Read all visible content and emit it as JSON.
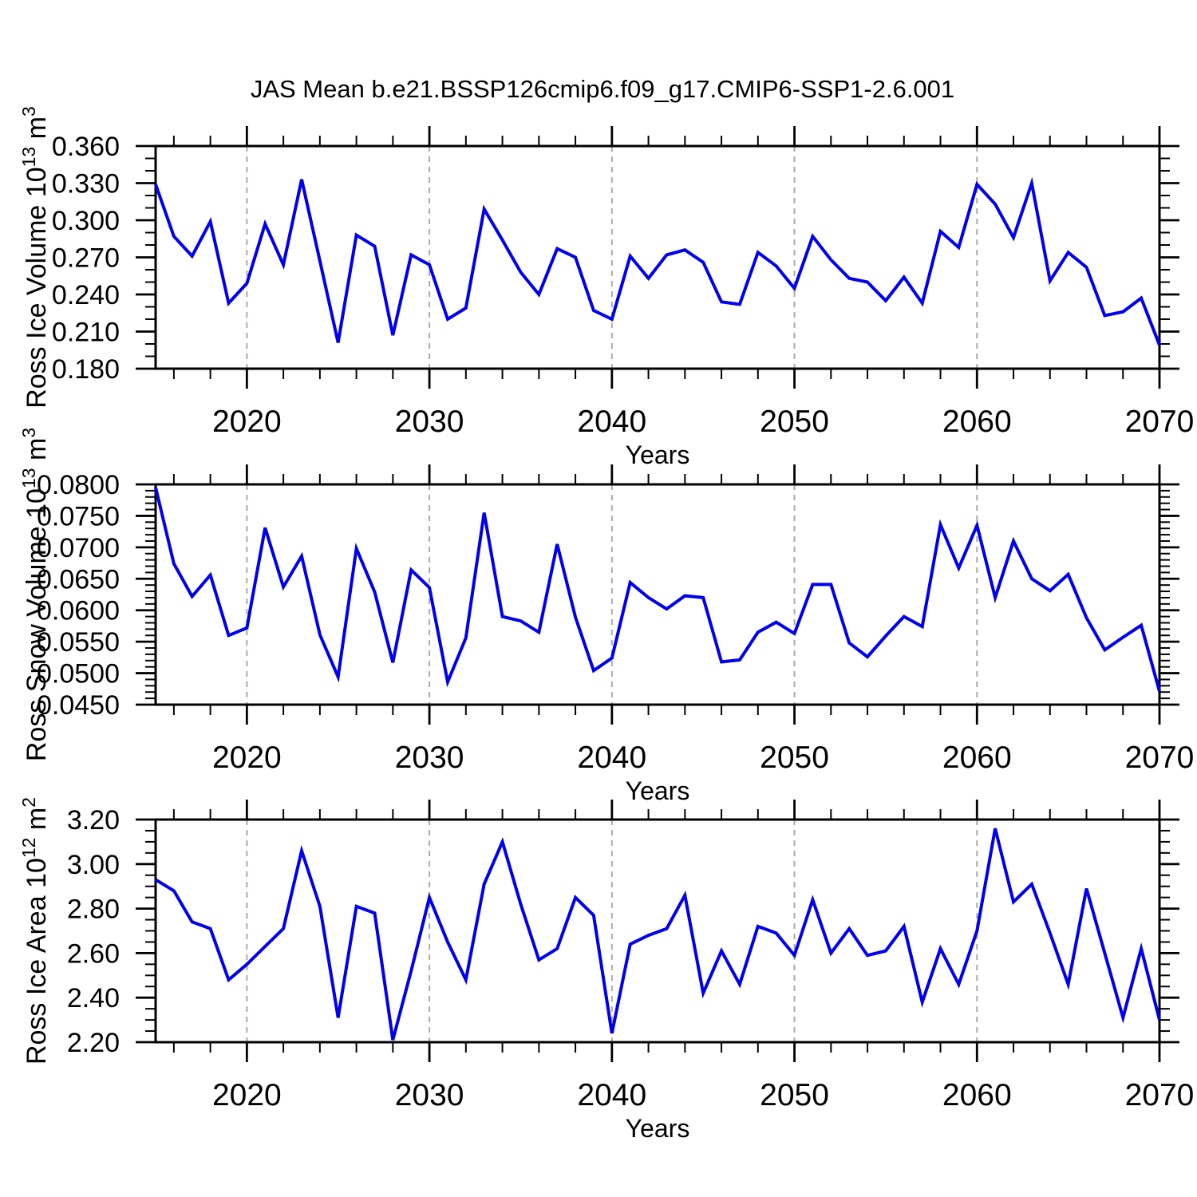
{
  "title": "JAS Mean b.e21.BSSP126cmip6.f09_g17.CMIP6-SSP1-2.6.001",
  "colors": {
    "line": "#0000ee",
    "frame": "#000000",
    "gridline": "#aaaaaa",
    "text": "#000000",
    "background": "#ffffff"
  },
  "x_axis": {
    "label": "Years",
    "range": [
      2015,
      2070
    ],
    "major_ticks": [
      2020,
      2030,
      2040,
      2050,
      2060,
      2070
    ],
    "major_tick_labels": [
      "2020",
      "2030",
      "2040",
      "2050",
      "2060",
      "2070"
    ],
    "minor_step_years": 2,
    "dashed_gridlines_at": [
      2020,
      2030,
      2040,
      2050,
      2060
    ]
  },
  "chart_data": [
    {
      "type": "line",
      "name": "ross-ice-volume",
      "ylabel": "Ross Ice Volume 10^13 m^3",
      "ylabel_parts": [
        {
          "text": "Ross Ice Volume 10",
          "super": false
        },
        {
          "text": "13",
          "super": true
        },
        {
          "text": " m",
          "super": false
        },
        {
          "text": "3",
          "super": true
        }
      ],
      "ylim": [
        0.18,
        0.36
      ],
      "ytick_values": [
        0.18,
        0.21,
        0.24,
        0.27,
        0.3,
        0.33,
        0.36
      ],
      "ytick_labels": [
        "0.180",
        "0.210",
        "0.240",
        "0.270",
        "0.300",
        "0.330",
        "0.360"
      ],
      "yminor_step": 0.01,
      "x_start": 2015,
      "x_step": 1,
      "values": [
        0.329,
        0.287,
        0.271,
        0.299,
        0.233,
        0.249,
        0.297,
        0.264,
        0.333,
        0.267,
        0.201,
        0.288,
        0.279,
        0.207,
        0.272,
        0.264,
        0.22,
        0.229,
        0.309,
        0.284,
        0.258,
        0.24,
        0.277,
        0.27,
        0.227,
        0.22,
        0.271,
        0.253,
        0.272,
        0.276,
        0.266,
        0.234,
        0.232,
        0.274,
        0.263,
        0.245,
        0.287,
        0.268,
        0.253,
        0.25,
        0.235,
        0.254,
        0.233,
        0.291,
        0.278,
        0.329,
        0.313,
        0.286,
        0.33,
        0.251,
        0.274,
        0.262,
        0.223,
        0.226,
        0.237,
        0.199
      ]
    },
    {
      "type": "line",
      "name": "ross-snow-volume",
      "ylabel": "Ross Snow Volume 10^13 m^3",
      "ylabel_parts": [
        {
          "text": "Ross Snow Volume 10",
          "super": false
        },
        {
          "text": "13",
          "super": true
        },
        {
          "text": " m",
          "super": false
        },
        {
          "text": "3",
          "super": true
        }
      ],
      "ylim": [
        0.045,
        0.08
      ],
      "ytick_values": [
        0.045,
        0.05,
        0.055,
        0.06,
        0.065,
        0.07,
        0.075,
        0.08
      ],
      "ytick_labels": [
        "0.0450",
        "0.0500",
        "0.0550",
        "0.0600",
        "0.0650",
        "0.0700",
        "0.0750",
        "0.0800"
      ],
      "yminor_step": 0.001,
      "x_start": 2015,
      "x_step": 1,
      "values": [
        0.0795,
        0.0674,
        0.0622,
        0.0656,
        0.056,
        0.0572,
        0.0731,
        0.0637,
        0.0686,
        0.0561,
        0.0494,
        0.0698,
        0.0629,
        0.0517,
        0.0664,
        0.0636,
        0.0486,
        0.0556,
        0.0755,
        0.059,
        0.0583,
        0.0565,
        0.0705,
        0.0589,
        0.0504,
        0.0524,
        0.0644,
        0.062,
        0.0602,
        0.0623,
        0.062,
        0.0518,
        0.0521,
        0.0565,
        0.0581,
        0.0563,
        0.0641,
        0.0641,
        0.0548,
        0.0526,
        0.0559,
        0.059,
        0.0574,
        0.0736,
        0.0667,
        0.0735,
        0.062,
        0.071,
        0.065,
        0.0631,
        0.0657,
        0.0588,
        0.0537,
        0.0557,
        0.0576,
        0.0471
      ]
    },
    {
      "type": "line",
      "name": "ross-ice-area",
      "ylabel": "Ross Ice Area 10^12 m^2",
      "ylabel_parts": [
        {
          "text": "Ross Ice Area 10",
          "super": false
        },
        {
          "text": "12",
          "super": true
        },
        {
          "text": " m",
          "super": false
        },
        {
          "text": "2",
          "super": true
        }
      ],
      "ylim": [
        2.2,
        3.2
      ],
      "ytick_values": [
        2.2,
        2.4,
        2.6,
        2.8,
        3.0,
        3.2
      ],
      "ytick_labels": [
        "2.20",
        "2.40",
        "2.60",
        "2.80",
        "3.00",
        "3.20"
      ],
      "yminor_step": 0.05,
      "x_start": 2015,
      "x_step": 1,
      "values": [
        2.93,
        2.88,
        2.74,
        2.71,
        2.48,
        2.55,
        2.63,
        2.71,
        3.06,
        2.81,
        2.31,
        2.81,
        2.78,
        2.21,
        2.52,
        2.85,
        2.65,
        2.48,
        2.91,
        3.1,
        2.82,
        2.57,
        2.62,
        2.85,
        2.77,
        2.24,
        2.64,
        2.68,
        2.71,
        2.86,
        2.42,
        2.61,
        2.46,
        2.72,
        2.69,
        2.59,
        2.84,
        2.6,
        2.71,
        2.59,
        2.61,
        2.72,
        2.38,
        2.62,
        2.46,
        2.7,
        3.16,
        2.83,
        2.91,
        2.69,
        2.46,
        2.89,
        2.6,
        2.31,
        2.62,
        2.3
      ]
    }
  ]
}
